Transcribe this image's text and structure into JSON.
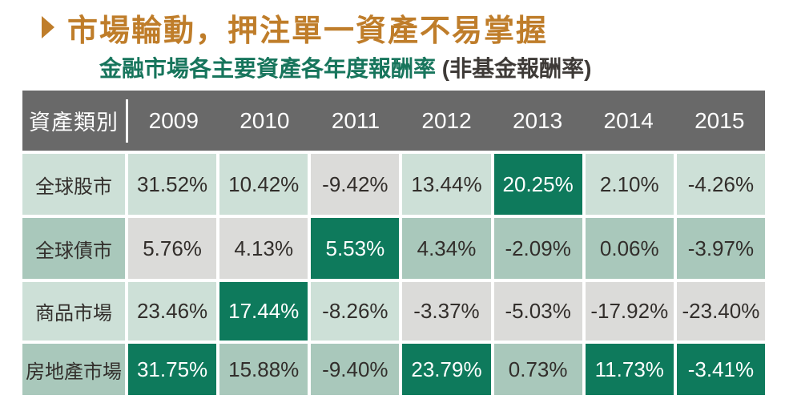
{
  "title": {
    "bullet_icon": "right-triangle",
    "text": "市場輪動，押注單一資產不易掌握"
  },
  "subtitle": {
    "main": "金融市場各主要資產各年度報酬率",
    "note": " (非基金報酬率)"
  },
  "table": {
    "header": {
      "label": "資產類別",
      "years": [
        "2009",
        "2010",
        "2011",
        "2012",
        "2013",
        "2014",
        "2015"
      ]
    },
    "rows": [
      {
        "label": "全球股市",
        "label_style": "light",
        "values": [
          "31.52%",
          "10.42%",
          "-9.42%",
          "13.44%",
          "20.25%",
          "2.10%",
          "-4.26%"
        ],
        "styles": [
          "light",
          "light",
          "worst",
          "light",
          "best",
          "light",
          "light"
        ]
      },
      {
        "label": "全球債市",
        "label_style": "medium",
        "values": [
          "5.76%",
          "4.13%",
          "5.53%",
          "4.34%",
          "-2.09%",
          "0.06%",
          "-3.97%"
        ],
        "styles": [
          "worst",
          "worst",
          "best",
          "medium",
          "medium",
          "medium",
          "medium"
        ]
      },
      {
        "label": "商品市場",
        "label_style": "light",
        "values": [
          "23.46%",
          "17.44%",
          "-8.26%",
          "-3.37%",
          "-5.03%",
          "-17.92%",
          "-23.40%"
        ],
        "styles": [
          "light",
          "best",
          "light",
          "worst",
          "worst",
          "worst",
          "worst"
        ]
      },
      {
        "label": "房地產市場",
        "label_style": "medium",
        "values": [
          "31.75%",
          "15.88%",
          "-9.40%",
          "23.79%",
          "0.73%",
          "11.73%",
          "-3.41%"
        ],
        "styles": [
          "best",
          "medium",
          "medium",
          "best",
          "medium",
          "best",
          "best"
        ]
      }
    ]
  },
  "colors": {
    "title_orange": "#BF7D2A",
    "subtitle_green": "#17755C",
    "note_dark": "#3E3A37",
    "header_bg": "#696969",
    "best_green": "#0E7A5C",
    "medium_green": "#A9C8BB",
    "light_green": "#CDE0D7",
    "worst_gray": "#DBDBD9",
    "cell_text": "#322E2B"
  },
  "chart_data": {
    "type": "table",
    "title": "金融市場各主要資產各年度報酬率 (非基金報酬率)",
    "categories": [
      "2009",
      "2010",
      "2011",
      "2012",
      "2013",
      "2014",
      "2015"
    ],
    "series": [
      {
        "name": "全球股市",
        "values": [
          31.52,
          10.42,
          -9.42,
          13.44,
          20.25,
          2.1,
          -4.26
        ]
      },
      {
        "name": "全球債市",
        "values": [
          5.76,
          4.13,
          5.53,
          4.34,
          -2.09,
          0.06,
          -3.97
        ]
      },
      {
        "name": "商品市場",
        "values": [
          23.46,
          17.44,
          -8.26,
          -3.37,
          -5.03,
          -17.92,
          -23.4
        ]
      },
      {
        "name": "房地產市場",
        "values": [
          31.75,
          15.88,
          -9.4,
          23.79,
          0.73,
          11.73,
          -3.41
        ]
      }
    ],
    "legend_note": "dark green = best asset of the year, gray = worst asset of the year"
  }
}
